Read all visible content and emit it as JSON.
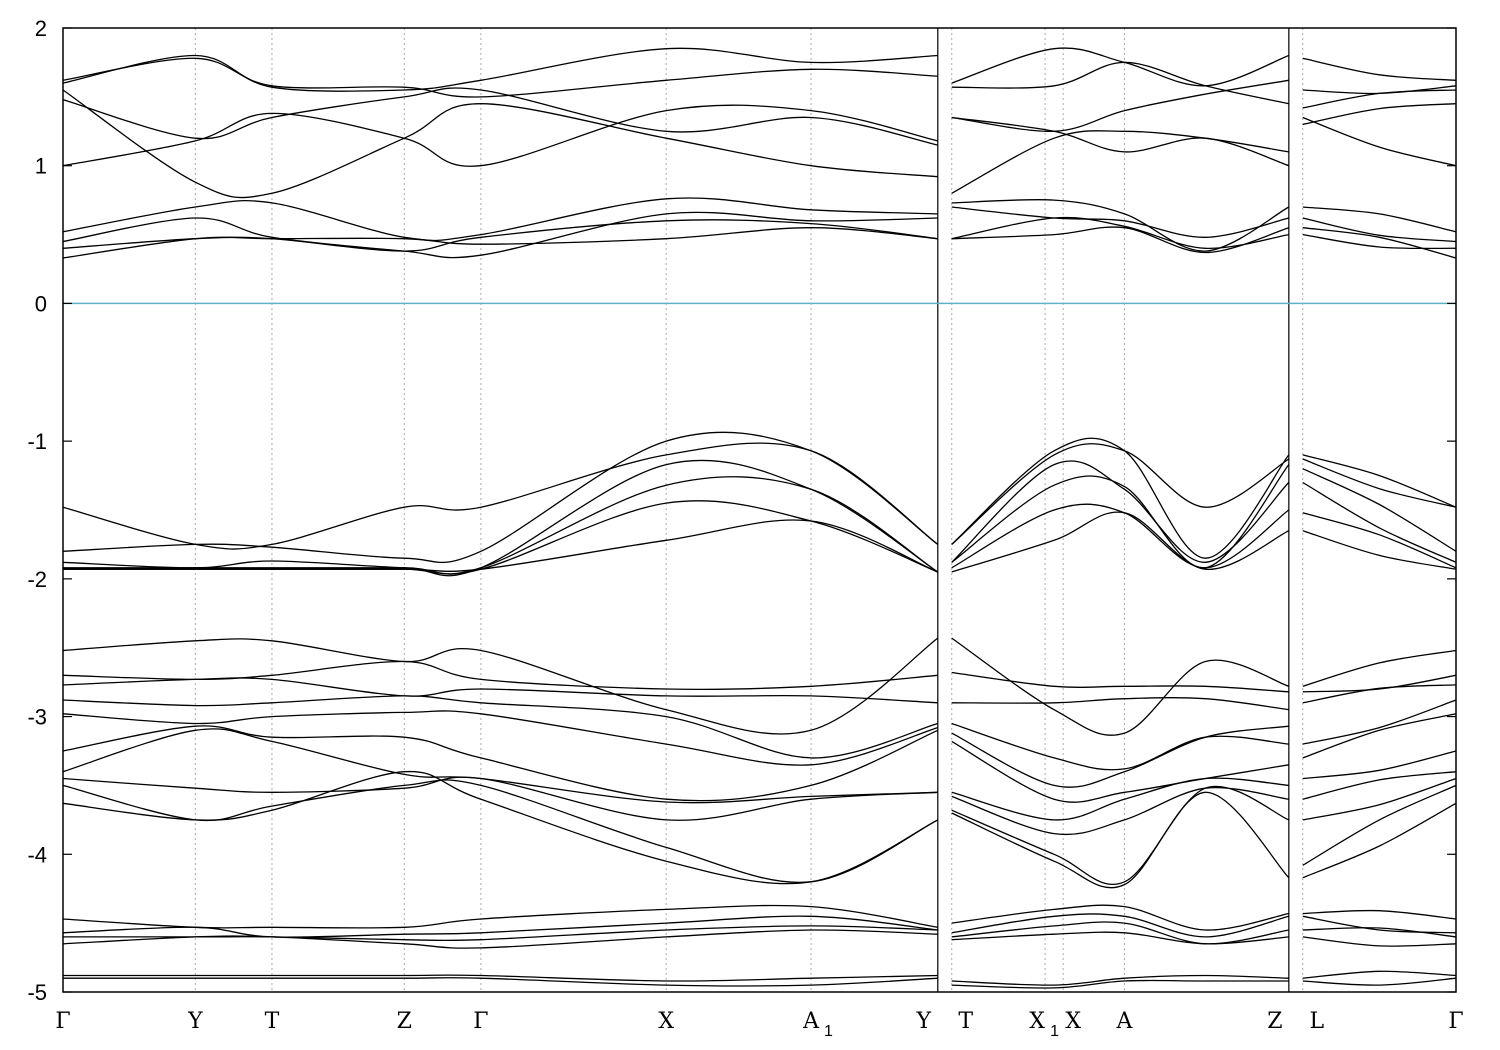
{
  "chart_data": {
    "type": "line",
    "title": "",
    "xlabel": "",
    "ylabel": "",
    "ylim": [
      -5,
      2
    ],
    "yticks": [
      2,
      1,
      0,
      -1,
      -2,
      -3,
      -4,
      -5
    ],
    "grid": "dotted vertical lines at k-points",
    "fermi_level": {
      "value": 0,
      "color": "#5fb0c8"
    },
    "line_color": "#000000",
    "kpoints": [
      {
        "label": "Γ",
        "x": 0.0
      },
      {
        "label": "Y",
        "x": 0.095
      },
      {
        "label": "T",
        "x": 0.15
      },
      {
        "label": "Z",
        "x": 0.245
      },
      {
        "label": "Γ",
        "x": 0.3
      },
      {
        "label": "X",
        "x": 0.433
      },
      {
        "label": "A",
        "sub": "1",
        "x": 0.537
      },
      {
        "label": "Y",
        "x": 0.628
      },
      {
        "label": "T",
        "x": 0.638
      },
      {
        "label": "X",
        "sub": "1",
        "x": 0.705
      },
      {
        "label": "X",
        "x": 0.718
      },
      {
        "label": "A",
        "x": 0.762
      },
      {
        "label": "Z",
        "x": 0.88
      },
      {
        "label": "L",
        "x": 0.89
      },
      {
        "label": "Γ",
        "x": 1.0
      }
    ],
    "segment_breaks": [
      0.628,
      0.88
    ],
    "series": [
      {
        "y": [
          1.0,
          1.18,
          1.38,
          1.2,
          1.0,
          1.4,
          1.4,
          1.18
        ],
        "y2": [
          1.35,
          1.25,
          1.1,
          1.2,
          1.0
        ]
      },
      {
        "y": [
          1.55,
          0.88,
          0.8,
          1.2,
          1.45,
          1.2,
          1.0,
          0.92
        ],
        "y2": [
          0.8,
          1.2,
          1.25,
          1.2,
          1.1
        ]
      },
      {
        "y": [
          1.6,
          1.8,
          1.57,
          1.55,
          1.62,
          1.85,
          1.75,
          1.8
        ],
        "y2": [
          1.6,
          1.85,
          1.75,
          1.58,
          1.8
        ]
      },
      {
        "y": [
          1.48,
          1.2,
          1.35,
          1.5,
          1.55,
          1.25,
          1.35,
          1.15
        ],
        "y2": [
          1.35,
          1.25,
          1.4,
          1.52,
          1.62
        ]
      },
      {
        "y": [
          1.62,
          1.78,
          1.58,
          1.57,
          1.5,
          1.62,
          1.7,
          1.65
        ],
        "y2": [
          1.57,
          1.58,
          1.75,
          1.58,
          1.45
        ]
      },
      {
        "y": [
          0.52,
          0.7,
          0.73,
          0.48,
          0.5,
          0.76,
          0.68,
          0.65
        ],
        "y2": [
          0.73,
          0.75,
          0.65,
          0.38,
          0.7
        ]
      },
      {
        "y": [
          0.45,
          0.62,
          0.48,
          0.38,
          0.35,
          0.65,
          0.6,
          0.62
        ],
        "y2": [
          0.7,
          0.62,
          0.6,
          0.48,
          0.62
        ]
      },
      {
        "y": [
          0.33,
          0.47,
          0.47,
          0.47,
          0.43,
          0.47,
          0.55,
          0.47
        ],
        "y2": [
          0.47,
          0.5,
          0.55,
          0.37,
          0.55
        ]
      },
      {
        "y": [
          0.4,
          0.47,
          0.47,
          0.38,
          0.48,
          0.6,
          0.58,
          0.47
        ],
        "y2": [
          0.47,
          0.62,
          0.56,
          0.4,
          0.5
        ]
      },
      {
        "y": [
          -1.48,
          -1.75,
          -1.75,
          -1.48,
          -1.48,
          -1.1,
          -1.07,
          -1.75
        ],
        "y2": [
          -1.75,
          -1.1,
          -1.07,
          -1.48,
          -1.13
        ]
      },
      {
        "y": [
          -1.8,
          -1.75,
          -1.77,
          -1.85,
          -1.8,
          -1.0,
          -1.07,
          -1.75
        ],
        "y2": [
          -1.75,
          -1.07,
          -1.07,
          -1.85,
          -1.1
        ]
      },
      {
        "y": [
          -1.88,
          -1.92,
          -1.87,
          -1.92,
          -1.92,
          -1.17,
          -1.35,
          -1.95
        ],
        "y2": [
          -1.88,
          -1.17,
          -1.35,
          -1.88,
          -1.3
        ]
      },
      {
        "y": [
          -1.92,
          -1.92,
          -1.92,
          -1.92,
          -1.92,
          -1.32,
          -1.35,
          -1.95
        ],
        "y2": [
          -1.88,
          -1.32,
          -1.33,
          -1.92,
          -1.17
        ]
      },
      {
        "y": [
          -1.93,
          -1.93,
          -1.93,
          -1.93,
          -1.93,
          -1.45,
          -1.58,
          -1.95
        ],
        "y2": [
          -1.92,
          -1.5,
          -1.52,
          -1.92,
          -1.5
        ]
      },
      {
        "y": [
          -1.93,
          -1.93,
          -1.93,
          -1.93,
          -1.93,
          -1.72,
          -1.58,
          -1.95
        ],
        "y2": [
          -1.95,
          -1.72,
          -1.52,
          -1.93,
          -1.65
        ]
      },
      {
        "y": [
          -2.52,
          -2.45,
          -2.45,
          -2.6,
          -2.52,
          -2.95,
          -3.1,
          -2.43
        ],
        "y2": [
          -2.43,
          -2.95,
          -3.12,
          -2.6,
          -2.78
        ]
      },
      {
        "y": [
          -2.7,
          -2.73,
          -2.7,
          -2.6,
          -2.73,
          -2.8,
          -2.78,
          -2.7
        ],
        "y2": [
          -2.68,
          -2.78,
          -2.78,
          -2.78,
          -2.82
        ]
      },
      {
        "y": [
          -2.77,
          -2.73,
          -2.73,
          -2.85,
          -2.8,
          -2.85,
          -2.85,
          -2.9
        ],
        "y2": [
          -2.9,
          -2.9,
          -2.87,
          -2.87,
          -2.95
        ]
      },
      {
        "y": [
          -2.88,
          -2.92,
          -2.9,
          -2.85,
          -2.9,
          -3.0,
          -3.3,
          -3.05
        ],
        "y2": [
          -3.05,
          -3.3,
          -3.38,
          -3.15,
          -3.2
        ]
      },
      {
        "y": [
          -2.98,
          -3.05,
          -3.0,
          -2.97,
          -2.98,
          -3.2,
          -3.35,
          -3.08
        ],
        "y2": [
          -3.12,
          -3.5,
          -3.4,
          -3.15,
          -3.07
        ]
      },
      {
        "y": [
          -3.25,
          -3.07,
          -3.15,
          -3.15,
          -3.3,
          -3.6,
          -3.5,
          -3.1
        ],
        "y2": [
          -3.18,
          -3.6,
          -3.55,
          -3.45,
          -3.35
        ]
      },
      {
        "y": [
          -3.4,
          -3.1,
          -3.18,
          -3.42,
          -3.45,
          -3.62,
          -3.58,
          -3.55
        ],
        "y2": [
          -3.55,
          -3.75,
          -3.6,
          -3.45,
          -3.5
        ]
      },
      {
        "y": [
          -3.45,
          -3.52,
          -3.55,
          -3.52,
          -3.45,
          -3.75,
          -3.6,
          -3.55
        ],
        "y2": [
          -3.58,
          -3.85,
          -3.75,
          -3.52,
          -3.6
        ]
      },
      {
        "y": [
          -3.5,
          -3.75,
          -3.65,
          -3.5,
          -3.5,
          -3.95,
          -4.2,
          -3.75
        ],
        "y2": [
          -3.68,
          -4.0,
          -4.2,
          -3.52,
          -3.75
        ]
      },
      {
        "y": [
          -3.63,
          -3.75,
          -3.68,
          -3.4,
          -3.6,
          -4.05,
          -4.2,
          -3.75
        ],
        "y2": [
          -3.7,
          -4.05,
          -4.22,
          -3.55,
          -4.17
        ]
      },
      {
        "y": [
          -4.47,
          -4.53,
          -4.53,
          -4.53,
          -4.47,
          -4.4,
          -4.38,
          -4.53
        ],
        "y2": [
          -4.5,
          -4.4,
          -4.38,
          -4.55,
          -4.43
        ]
      },
      {
        "y": [
          -4.57,
          -4.53,
          -4.6,
          -4.58,
          -4.57,
          -4.5,
          -4.45,
          -4.55
        ],
        "y2": [
          -4.57,
          -4.45,
          -4.45,
          -4.6,
          -4.45
        ]
      },
      {
        "y": [
          -4.6,
          -4.6,
          -4.6,
          -4.62,
          -4.62,
          -4.55,
          -4.52,
          -4.55
        ],
        "y2": [
          -4.6,
          -4.52,
          -4.5,
          -4.65,
          -4.55
        ]
      },
      {
        "y": [
          -4.65,
          -4.6,
          -4.6,
          -4.65,
          -4.68,
          -4.6,
          -4.55,
          -4.58
        ],
        "y2": [
          -4.62,
          -4.58,
          -4.57,
          -4.65,
          -4.6
        ]
      },
      {
        "y": [
          -4.88,
          -4.88,
          -4.88,
          -4.88,
          -4.88,
          -4.92,
          -4.9,
          -4.88
        ],
        "y2": [
          -4.92,
          -4.95,
          -4.9,
          -4.88,
          -4.9
        ]
      },
      {
        "y": [
          -4.9,
          -4.9,
          -4.9,
          -4.9,
          -4.9,
          -4.95,
          -4.95,
          -4.9
        ],
        "y2": [
          -4.95,
          -4.97,
          -4.92,
          -4.92,
          -4.92
        ]
      }
    ],
    "third_segment_rel": {
      "note": "values at L (start) and Γ (end) for bands in last segment",
      "start": [
        1.35,
        1.3,
        1.78,
        1.42,
        1.55,
        0.7,
        0.62,
        0.55,
        0.5,
        -1.1,
        -1.13,
        -1.2,
        -1.3,
        -1.52,
        -1.65,
        -2.78,
        -2.82,
        -2.9,
        -3.2,
        -3.3,
        -3.45,
        -3.6,
        -3.75,
        -4.08,
        -4.17,
        -4.43,
        -4.45,
        -4.55,
        -4.6,
        -4.9,
        -4.92
      ],
      "end": [
        1.0,
        1.45,
        1.62,
        1.55,
        1.58,
        0.52,
        0.45,
        0.33,
        0.4,
        -1.48,
        -1.48,
        -1.8,
        -1.88,
        -1.92,
        -1.93,
        -2.52,
        -2.7,
        -2.77,
        -2.88,
        -2.98,
        -3.25,
        -3.4,
        -3.45,
        -3.5,
        -3.63,
        -4.47,
        -4.57,
        -4.6,
        -4.65,
        -4.88,
        -4.9
      ]
    }
  }
}
